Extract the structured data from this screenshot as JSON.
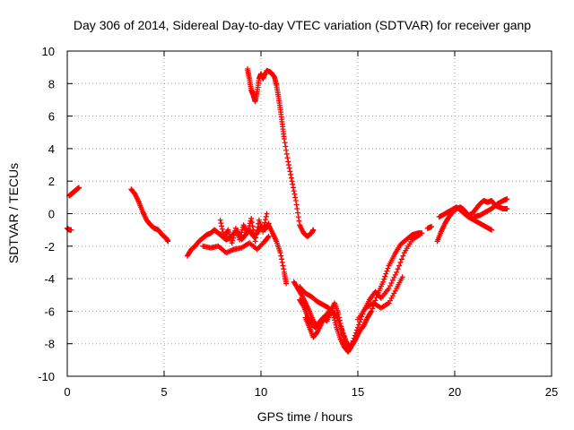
{
  "chart_data": {
    "type": "scatter",
    "title": "Day 306 of 2014, Sidereal Day-to-day VTEC variation (SDTVAR) for receiver ganp",
    "xlabel": "GPS time / hours",
    "ylabel": "SDTVAR / TECUs",
    "xlim": [
      0,
      25
    ],
    "ylim": [
      -10,
      10
    ],
    "xticks": [
      0,
      5,
      10,
      15,
      20,
      25
    ],
    "yticks": [
      -10,
      -8,
      -6,
      -4,
      -2,
      0,
      2,
      4,
      6,
      8,
      10
    ],
    "grid": true,
    "marker": "+",
    "color": "#ff0000",
    "series": [
      {
        "segments": [
          {
            "x": [
              0.0,
              0.1,
              0.2
            ],
            "y": [
              -0.9,
              -1.0,
              -1.0
            ]
          },
          {
            "x": [
              0.1,
              0.2,
              0.3,
              0.4,
              0.5,
              0.6
            ],
            "y": [
              1.1,
              1.2,
              1.3,
              1.4,
              1.5,
              1.6
            ]
          },
          {
            "x": [
              3.3,
              3.5,
              3.7,
              3.9,
              4.1,
              4.3,
              4.5,
              4.7,
              4.9,
              5.1,
              5.2
            ],
            "y": [
              1.5,
              1.2,
              0.7,
              0.1,
              -0.4,
              -0.7,
              -0.9,
              -1.0,
              -1.3,
              -1.5,
              -1.7
            ]
          },
          {
            "x": [
              6.2,
              6.4,
              6.6,
              6.8,
              7.0,
              7.2,
              7.4,
              7.6,
              7.8,
              8.0,
              8.2,
              8.4,
              8.6,
              8.8,
              9.0,
              9.2,
              9.4,
              9.6,
              9.8,
              10.0,
              10.2,
              10.4
            ],
            "y": [
              -2.6,
              -2.2,
              -2.0,
              -1.7,
              -1.5,
              -1.3,
              -1.2,
              -1.0,
              -1.2,
              -1.4,
              -1.6,
              -1.5,
              -1.2,
              -1.1,
              -1.6,
              -1.3,
              -1.0,
              -1.4,
              -1.2,
              -0.8,
              -1.0,
              -0.6
            ]
          },
          {
            "x": [
              7.0,
              7.4,
              7.8,
              8.2,
              8.6,
              9.0,
              9.4,
              9.8,
              10.2,
              10.4
            ],
            "y": [
              -2.0,
              -2.1,
              -2.0,
              -2.4,
              -2.2,
              -2.1,
              -1.8,
              -2.2,
              -1.7,
              -1.4
            ]
          },
          {
            "x": [
              7.9,
              8.1,
              8.3,
              8.5,
              8.7,
              8.9,
              9.1,
              9.3,
              9.5,
              9.7,
              9.9,
              10.1,
              10.3
            ],
            "y": [
              -0.4,
              -1.5,
              -1.0,
              -1.8,
              -0.9,
              -1.6,
              -0.7,
              -1.2,
              -0.3,
              -1.7,
              -0.4,
              -1.1,
              0.0
            ]
          },
          {
            "x": [
              9.3,
              9.4,
              9.5,
              9.6,
              9.7,
              9.8,
              9.9,
              10.0,
              10.1,
              10.3,
              10.5,
              10.7,
              10.8,
              10.9,
              11.0,
              11.1,
              11.2,
              11.4,
              11.6,
              11.8,
              12.0,
              12.2,
              12.4,
              12.6,
              12.7
            ],
            "y": [
              8.9,
              8.3,
              7.6,
              7.3,
              6.9,
              7.5,
              8.3,
              8.6,
              8.3,
              8.8,
              8.7,
              8.4,
              7.9,
              7.2,
              6.4,
              5.5,
              4.6,
              3.2,
              2.0,
              0.8,
              -0.7,
              -1.2,
              -1.4,
              -1.2,
              -1.0
            ]
          },
          {
            "x": [
              10.4,
              10.6,
              10.8,
              11.0,
              11.2,
              11.3
            ],
            "y": [
              -0.7,
              -1.2,
              -1.7,
              -2.4,
              -3.6,
              -4.3
            ]
          },
          {
            "x": [
              11.7,
              11.9,
              12.1,
              12.3,
              12.5,
              12.7,
              12.9,
              13.1,
              13.3,
              13.5,
              13.7,
              13.9,
              14.1,
              14.3,
              14.5,
              14.7,
              14.9,
              15.1,
              15.3,
              15.5,
              15.7,
              16.0,
              16.3,
              16.6,
              16.9,
              17.2,
              17.5,
              17.8,
              18.1,
              18.3
            ],
            "y": [
              -4.2,
              -4.6,
              -5.0,
              -5.5,
              -6.0,
              -6.6,
              -6.9,
              -6.6,
              -6.4,
              -6.2,
              -6.1,
              -7.0,
              -7.7,
              -8.2,
              -8.5,
              -8.1,
              -7.7,
              -7.2,
              -6.9,
              -6.4,
              -6.0,
              -5.0,
              -4.2,
              -3.2,
              -2.5,
              -1.9,
              -1.6,
              -1.3,
              -1.2,
              -1.2
            ]
          },
          {
            "x": [
              12.3,
              12.5,
              12.7,
              12.9,
              13.1,
              13.3,
              13.6,
              13.9,
              14.2,
              14.5,
              14.7,
              15.0,
              15.3,
              15.6,
              15.9,
              16.2,
              16.6,
              17.0,
              17.4,
              17.8,
              18.2
            ],
            "y": [
              -6.4,
              -7.0,
              -7.6,
              -7.3,
              -6.8,
              -6.3,
              -5.9,
              -6.3,
              -7.2,
              -8.2,
              -8.0,
              -7.0,
              -6.0,
              -5.3,
              -4.8,
              -5.2,
              -4.6,
              -3.6,
              -2.4,
              -1.6,
              -1.3
            ]
          },
          {
            "x": [
              12.0,
              12.2,
              12.4,
              12.6,
              12.8,
              13.0,
              13.2,
              13.4,
              13.6,
              13.8,
              14.0,
              14.2,
              14.4,
              14.6
            ],
            "y": [
              -5.3,
              -5.7,
              -6.3,
              -6.8,
              -7.0,
              -6.7,
              -6.4,
              -6.6,
              -6.0,
              -5.5,
              -6.2,
              -7.3,
              -7.9,
              -8.3
            ]
          },
          {
            "x": [
              12.0,
              12.3,
              12.6,
              12.9,
              13.2,
              13.5,
              13.8
            ],
            "y": [
              -4.5,
              -4.9,
              -5.1,
              -5.4,
              -5.6,
              -5.8,
              -6.2
            ]
          },
          {
            "x": [
              15.0,
              15.4,
              15.8,
              16.2,
              16.6,
              17.0,
              17.3
            ],
            "y": [
              -6.5,
              -5.8,
              -5.5,
              -5.8,
              -5.5,
              -4.6,
              -3.9
            ]
          },
          {
            "x": [
              18.6,
              18.8
            ],
            "y": [
              -0.9,
              -0.8
            ]
          },
          {
            "x": [
              19.1,
              19.3,
              19.5,
              19.7,
              19.9,
              20.1,
              20.3,
              20.5,
              20.7,
              20.9,
              21.1,
              21.3,
              21.5,
              21.7,
              21.9,
              22.1,
              22.3,
              22.5,
              22.7
            ],
            "y": [
              -1.7,
              -1.1,
              -0.6,
              -0.2,
              0.1,
              0.3,
              0.4,
              0.2,
              -0.1,
              0.0,
              0.3,
              0.6,
              0.8,
              0.7,
              0.8,
              0.5,
              0.4,
              0.3,
              0.3
            ]
          },
          {
            "x": [
              19.2,
              19.5,
              19.8,
              20.1,
              20.4,
              20.7,
              21.0,
              21.3,
              21.6,
              21.9
            ],
            "y": [
              -0.2,
              0.0,
              0.2,
              0.4,
              0.1,
              -0.2,
              -0.4,
              -0.6,
              -0.8,
              -1.0
            ]
          },
          {
            "x": [
              21.0,
              21.3,
              21.6,
              21.9,
              22.2,
              22.5,
              22.7
            ],
            "y": [
              -0.2,
              -0.1,
              0.1,
              0.3,
              0.6,
              0.8,
              0.9
            ]
          }
        ]
      }
    ]
  }
}
